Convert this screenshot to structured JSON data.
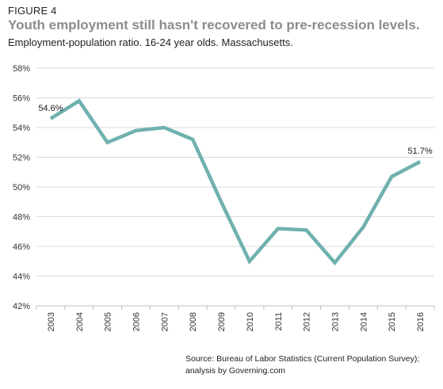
{
  "figure_label": "FIGURE 4",
  "title": "Youth employment still hasn't recovered to pre-recession levels.",
  "subtitle": "Employment-population ratio. 16-24 year olds. Massachusetts.",
  "source_line1": "Source: Bureau of Labor Statistics (Current Population Survey);",
  "source_line2": "analysis by Governing.com",
  "colors": {
    "line": "#6fb1ae",
    "grid": "#d9d9d9",
    "axis": "#bfbfbf"
  },
  "chart_data": {
    "type": "line",
    "title": "Youth employment still hasn't recovered to pre-recession levels.",
    "subtitle": "Employment-population ratio. 16-24 year olds. Massachusetts.",
    "categories": [
      "2003",
      "2004",
      "2005",
      "2006",
      "2007",
      "2008",
      "2009",
      "2010",
      "2011",
      "2012",
      "2013",
      "2014",
      "2015",
      "2016"
    ],
    "series": [
      {
        "values": [
          54.6,
          55.8,
          53.0,
          53.8,
          54.0,
          53.2,
          49.0,
          45.0,
          47.2,
          47.1,
          44.9,
          47.3,
          50.7,
          51.7
        ]
      }
    ],
    "ylim": [
      42,
      58
    ],
    "yticks": [
      "42%",
      "44%",
      "46%",
      "48%",
      "50%",
      "52%",
      "54%",
      "56%",
      "58%"
    ],
    "data_labels": [
      {
        "category": "2003",
        "text": "54.6%"
      },
      {
        "category": "2016",
        "text": "51.7%"
      }
    ],
    "grid": true,
    "xlabel": "",
    "ylabel": ""
  }
}
